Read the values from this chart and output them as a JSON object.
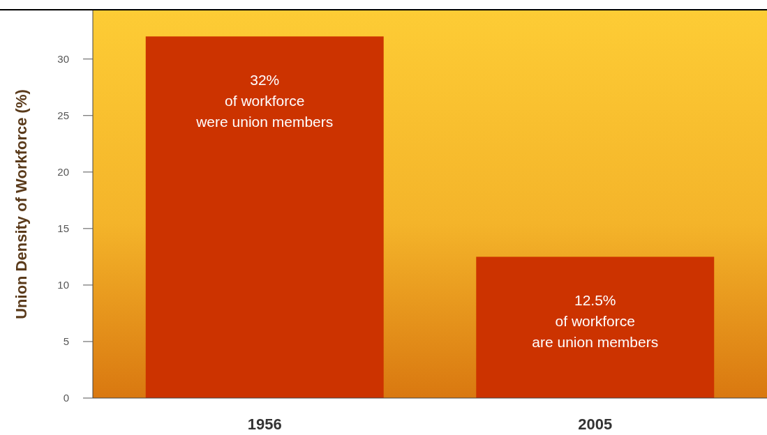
{
  "chart_data": {
    "type": "bar",
    "ylabel": "Union Density of Workforce (%)",
    "categories": [
      "1956",
      "2005"
    ],
    "values": [
      32,
      12.5
    ],
    "color": "#cc3300",
    "ylim": [
      0,
      34.3
    ],
    "yticks": [
      0,
      5,
      10,
      15,
      20,
      25,
      30
    ],
    "grid": false,
    "annotations": [
      {
        "text": "32%\nof workforce\nwere union members",
        "x": "1956",
        "y": 32
      },
      {
        "text": "12.5%\nof workforce\nare union members",
        "x": "2005",
        "y": 12.5
      }
    ]
  }
}
